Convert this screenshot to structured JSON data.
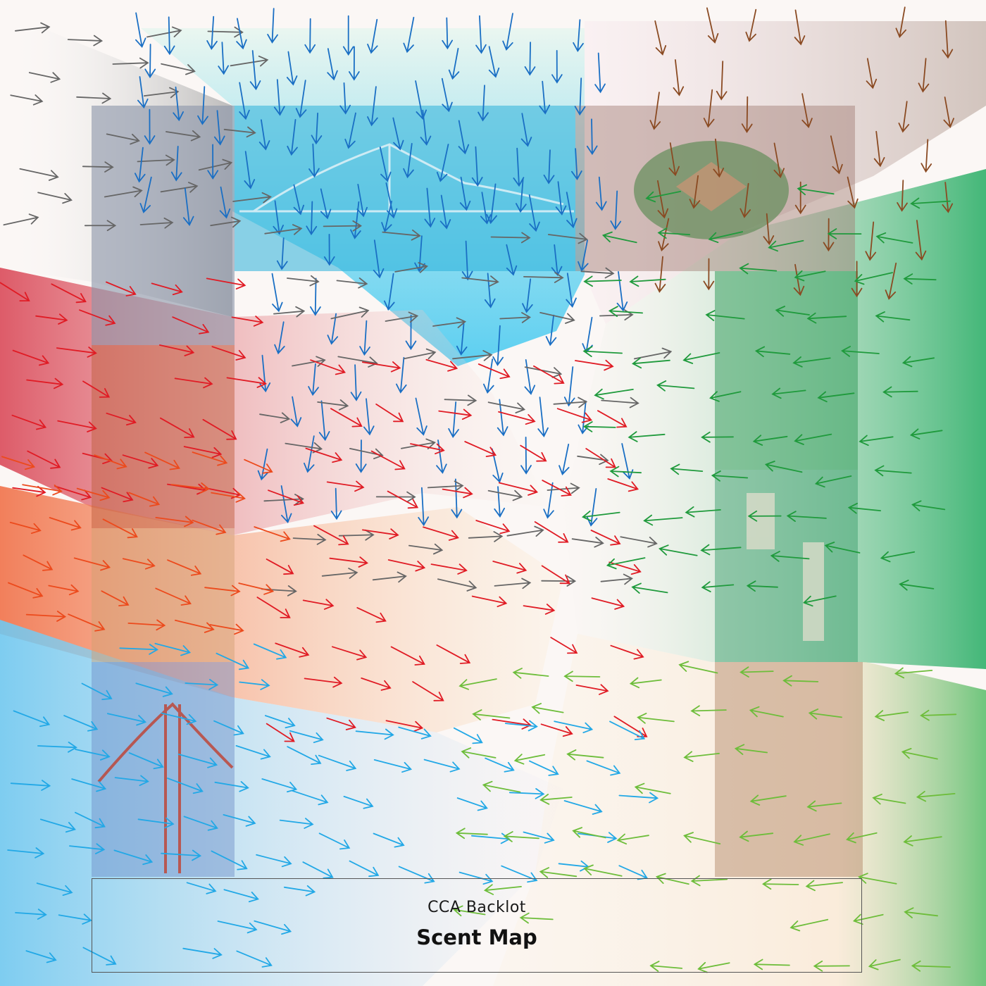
{
  "title_box": {
    "subtitle": "CCA Backlot",
    "title": "Scent Map"
  },
  "colors": {
    "gray": "#666666",
    "blue": "#1a6fc4",
    "brown": "#8a4a22",
    "red": "#e01b24",
    "orange": "#ec4a1c",
    "cyan": "#22a8e6",
    "green": "#1f9a3c",
    "lime": "#6dbd3a"
  },
  "photo_panels": [
    {
      "name": "city-skyline-photo",
      "tint": "#8a94a8"
    },
    {
      "name": "bay-bridge-photo",
      "tint": "#2ab0d8"
    },
    {
      "name": "ballpark-photo",
      "tint": "#a07a70"
    },
    {
      "name": "street-district-photo",
      "tint": "#c06040"
    },
    {
      "name": "victorian-houses-photo",
      "tint": "#d0a070"
    },
    {
      "name": "golden-gate-photo",
      "tint": "#6c8cc8"
    },
    {
      "name": "park-photo",
      "tint": "#3aa060"
    },
    {
      "name": "mission-church-photo",
      "tint": "#40a070"
    },
    {
      "name": "hillside-photo",
      "tint": "#b08060"
    }
  ],
  "arrow_fields": [
    {
      "name": "gray-scent-field",
      "color": "gray",
      "angle": 0
    },
    {
      "name": "blue-scent-field",
      "color": "blue",
      "angle": 90
    },
    {
      "name": "brown-scent-field",
      "color": "brown",
      "angle": 90
    },
    {
      "name": "red-scent-field",
      "color": "red",
      "angle": 20
    },
    {
      "name": "orange-scent-field",
      "color": "orange",
      "angle": 15
    },
    {
      "name": "cyan-scent-field",
      "color": "cyan",
      "angle": 15
    },
    {
      "name": "green-scent-field",
      "color": "green",
      "angle": 180
    },
    {
      "name": "lime-scent-field",
      "color": "lime",
      "angle": 180
    }
  ]
}
